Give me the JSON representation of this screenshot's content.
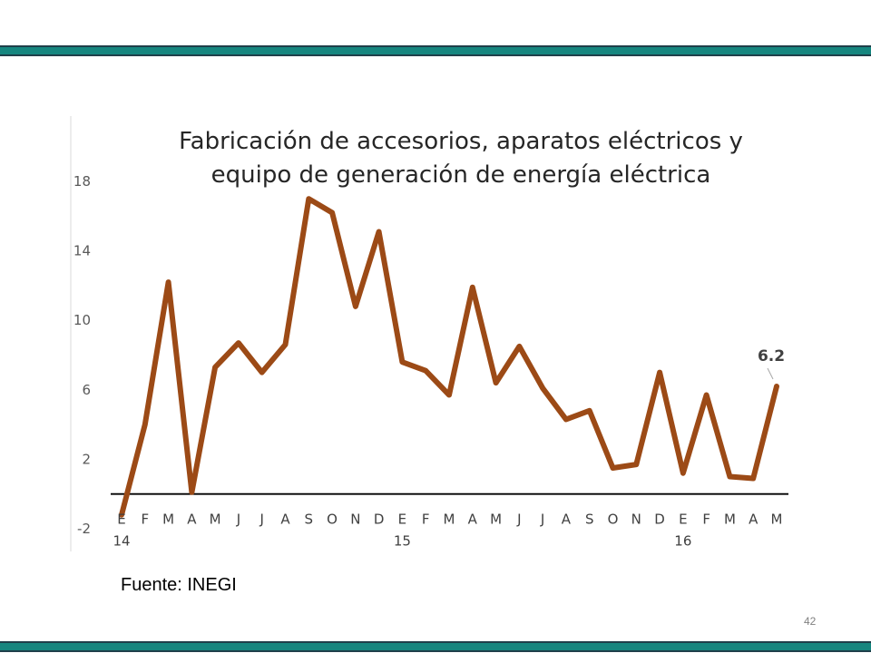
{
  "slide": {
    "source": "Fuente: INEGI",
    "page_number": "42",
    "band_color": "#16867f"
  },
  "chart_data": {
    "type": "line",
    "title": [
      "Fabricación de accesorios, aparatos eléctricos y",
      "equipo de generación de energía  eléctrica"
    ],
    "xlabel": "",
    "ylabel": "",
    "ylim": [
      -2,
      20
    ],
    "yticks": [
      18,
      14,
      10,
      6,
      2,
      -2
    ],
    "categories": [
      "E",
      "F",
      "M",
      "A",
      "M",
      "J",
      "J",
      "A",
      "S",
      "O",
      "N",
      "D",
      "E",
      "F",
      "M",
      "A",
      "M",
      "J",
      "J",
      "A",
      "S",
      "O",
      "N",
      "D",
      "E",
      "F",
      "M",
      "A",
      "M"
    ],
    "year_labels": [
      {
        "index": 0,
        "label": "14"
      },
      {
        "index": 12,
        "label": "15"
      },
      {
        "index": 24,
        "label": "16"
      }
    ],
    "series": [
      {
        "color": "#9c4a16",
        "values": [
          -1.2,
          4.0,
          12.2,
          0.1,
          7.3,
          8.7,
          7.0,
          8.6,
          17.0,
          16.2,
          10.8,
          15.1,
          7.6,
          7.1,
          5.7,
          11.9,
          6.4,
          8.5,
          6.1,
          4.3,
          4.8,
          1.5,
          1.7,
          7.0,
          1.2,
          5.7,
          1.0,
          0.9,
          6.2
        ]
      }
    ],
    "data_labels": [
      {
        "index": 28,
        "label": "6.2"
      }
    ],
    "grid": false,
    "legend": "none"
  }
}
